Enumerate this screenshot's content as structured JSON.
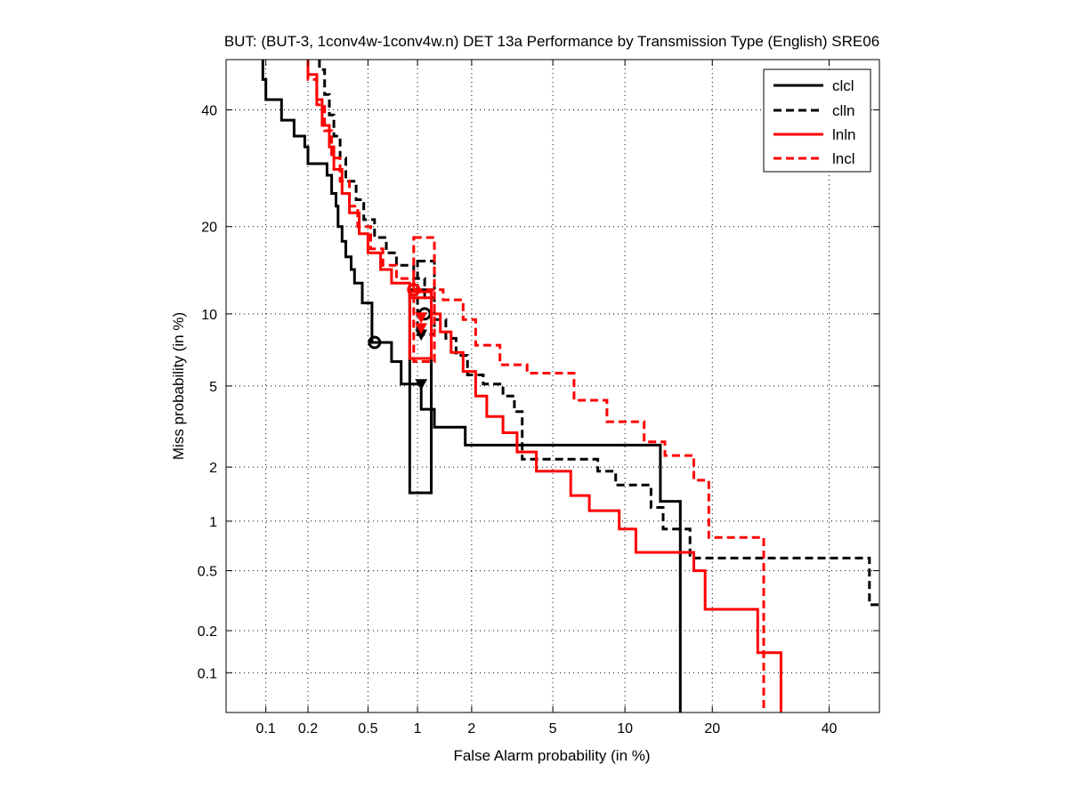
{
  "chart_data": {
    "type": "line",
    "title": "BUT: (BUT-3, 1conv4w-1conv4w.n) DET 13a Performance by Transmission Type (English) SRE06",
    "xlabel": "False Alarm probability (in %)",
    "ylabel": "Miss probability (in %)",
    "x_scale": "probit",
    "y_scale": "probit",
    "xlim": [
      0.05,
      50
    ],
    "ylim": [
      0.05,
      50
    ],
    "grid": true,
    "legend_position": "top-right",
    "x_ticks": [
      {
        "v": 0.1,
        "label": "0.1"
      },
      {
        "v": 0.2,
        "label": "0.2"
      },
      {
        "v": 0.5,
        "label": "0.5"
      },
      {
        "v": 1,
        "label": "1"
      },
      {
        "v": 2,
        "label": "2"
      },
      {
        "v": 5,
        "label": "5"
      },
      {
        "v": 10,
        "label": "10"
      },
      {
        "v": 20,
        "label": "20"
      },
      {
        "v": 40,
        "label": "40"
      }
    ],
    "y_ticks": [
      {
        "v": 0.1,
        "label": "0.1"
      },
      {
        "v": 0.2,
        "label": "0.2"
      },
      {
        "v": 0.5,
        "label": "0.5"
      },
      {
        "v": 1,
        "label": "1"
      },
      {
        "v": 2,
        "label": "2"
      },
      {
        "v": 5,
        "label": "5"
      },
      {
        "v": 10,
        "label": "10"
      },
      {
        "v": 20,
        "label": "20"
      },
      {
        "v": 40,
        "label": "40"
      }
    ],
    "series": [
      {
        "name": "clcl",
        "color": "#000000",
        "dash": "solid",
        "points": [
          [
            0.095,
            50
          ],
          [
            0.095,
            46
          ],
          [
            0.1,
            46
          ],
          [
            0.1,
            42
          ],
          [
            0.13,
            42
          ],
          [
            0.13,
            38
          ],
          [
            0.16,
            38
          ],
          [
            0.16,
            35
          ],
          [
            0.19,
            35
          ],
          [
            0.19,
            33
          ],
          [
            0.2,
            33
          ],
          [
            0.2,
            30
          ],
          [
            0.27,
            30
          ],
          [
            0.27,
            28
          ],
          [
            0.29,
            28
          ],
          [
            0.29,
            25
          ],
          [
            0.31,
            25
          ],
          [
            0.31,
            23
          ],
          [
            0.32,
            23
          ],
          [
            0.32,
            20
          ],
          [
            0.34,
            20
          ],
          [
            0.34,
            18
          ],
          [
            0.36,
            18
          ],
          [
            0.36,
            16
          ],
          [
            0.39,
            16
          ],
          [
            0.39,
            14.5
          ],
          [
            0.41,
            14.5
          ],
          [
            0.41,
            13
          ],
          [
            0.46,
            13
          ],
          [
            0.46,
            11
          ],
          [
            0.53,
            11
          ],
          [
            0.53,
            7.7
          ],
          [
            0.7,
            7.7
          ],
          [
            0.7,
            6.4
          ],
          [
            0.8,
            6.4
          ],
          [
            0.8,
            5.1
          ],
          [
            1.05,
            5.1
          ],
          [
            1.05,
            3.9
          ],
          [
            1.25,
            3.9
          ],
          [
            1.25,
            3.2
          ],
          [
            1.85,
            3.2
          ],
          [
            1.85,
            2.6
          ],
          [
            13.5,
            2.6
          ],
          [
            13.5,
            1.3
          ],
          [
            15.8,
            1.3
          ],
          [
            15.8,
            0.05
          ]
        ],
        "marker": {
          "shape": "circle",
          "x": 0.55,
          "y": 7.7
        },
        "marker2": {
          "shape": "circle",
          "x": 1.1,
          "y": 10
        },
        "ci_box": {
          "x": [
            0.9,
            1.2
          ],
          "y": [
            1.45,
            12.3
          ]
        },
        "actual": {
          "shape": "triangle",
          "x": 1.05,
          "y": 5.1
        }
      },
      {
        "name": "clln",
        "color": "#000000",
        "dash": "dashed",
        "points": [
          [
            0.24,
            50
          ],
          [
            0.24,
            48
          ],
          [
            0.26,
            48
          ],
          [
            0.26,
            43
          ],
          [
            0.28,
            43
          ],
          [
            0.28,
            39
          ],
          [
            0.3,
            39
          ],
          [
            0.3,
            35
          ],
          [
            0.33,
            35
          ],
          [
            0.33,
            31
          ],
          [
            0.36,
            31
          ],
          [
            0.36,
            27
          ],
          [
            0.42,
            27
          ],
          [
            0.42,
            24
          ],
          [
            0.47,
            24
          ],
          [
            0.47,
            21
          ],
          [
            0.55,
            21
          ],
          [
            0.55,
            18.5
          ],
          [
            0.65,
            18.5
          ],
          [
            0.65,
            16.5
          ],
          [
            0.75,
            16.5
          ],
          [
            0.75,
            15
          ],
          [
            0.95,
            15
          ],
          [
            0.95,
            13.5
          ],
          [
            1.1,
            13.5
          ],
          [
            1.1,
            11.5
          ],
          [
            1.25,
            11.5
          ],
          [
            1.25,
            9.5
          ],
          [
            1.45,
            9.5
          ],
          [
            1.45,
            8
          ],
          [
            1.65,
            8
          ],
          [
            1.65,
            6.8
          ],
          [
            1.9,
            6.8
          ],
          [
            1.9,
            5.6
          ],
          [
            2.3,
            5.6
          ],
          [
            2.3,
            5.1
          ],
          [
            2.9,
            5.1
          ],
          [
            2.9,
            4.5
          ],
          [
            3.3,
            4.5
          ],
          [
            3.3,
            3.8
          ],
          [
            3.6,
            3.8
          ],
          [
            3.6,
            2.2
          ],
          [
            7.8,
            2.2
          ],
          [
            7.8,
            1.9
          ],
          [
            9.2,
            1.9
          ],
          [
            9.2,
            1.6
          ],
          [
            12.5,
            1.6
          ],
          [
            12.5,
            1.2
          ],
          [
            13.8,
            1.2
          ],
          [
            13.8,
            0.9
          ],
          [
            17.0,
            0.9
          ],
          [
            17.0,
            0.6
          ],
          [
            48,
            0.6
          ],
          [
            48,
            0.3
          ],
          [
            50,
            0.3
          ]
        ],
        "ci_box": {
          "x": [
            1.0,
            1.25
          ],
          "y": [
            8.3,
            15.5
          ]
        },
        "actual": {
          "shape": "triangle",
          "x": 1.05,
          "y": 8.3
        }
      },
      {
        "name": "lnln",
        "color": "#ff0000",
        "dash": "solid",
        "points": [
          [
            0.2,
            50
          ],
          [
            0.2,
            47
          ],
          [
            0.23,
            47
          ],
          [
            0.23,
            42
          ],
          [
            0.25,
            42
          ],
          [
            0.25,
            37
          ],
          [
            0.28,
            37
          ],
          [
            0.28,
            33
          ],
          [
            0.3,
            33
          ],
          [
            0.3,
            29
          ],
          [
            0.34,
            29
          ],
          [
            0.34,
            25
          ],
          [
            0.38,
            25
          ],
          [
            0.38,
            22
          ],
          [
            0.44,
            22
          ],
          [
            0.44,
            19
          ],
          [
            0.5,
            19
          ],
          [
            0.5,
            16.5
          ],
          [
            0.6,
            16.5
          ],
          [
            0.6,
            14.5
          ],
          [
            0.7,
            14.5
          ],
          [
            0.7,
            13
          ],
          [
            0.9,
            13
          ],
          [
            0.9,
            11.5
          ],
          [
            1.2,
            11.5
          ],
          [
            1.2,
            10
          ],
          [
            1.35,
            10
          ],
          [
            1.35,
            8.5
          ],
          [
            1.55,
            8.5
          ],
          [
            1.55,
            7
          ],
          [
            1.8,
            7
          ],
          [
            1.8,
            5.8
          ],
          [
            2.1,
            5.8
          ],
          [
            2.1,
            4.5
          ],
          [
            2.4,
            4.5
          ],
          [
            2.4,
            3.6
          ],
          [
            2.9,
            3.6
          ],
          [
            2.9,
            3.0
          ],
          [
            3.4,
            3.0
          ],
          [
            3.4,
            2.4
          ],
          [
            4.2,
            2.4
          ],
          [
            4.2,
            1.9
          ],
          [
            6.0,
            1.9
          ],
          [
            6.0,
            1.4
          ],
          [
            7.2,
            1.4
          ],
          [
            7.2,
            1.15
          ],
          [
            9.5,
            1.15
          ],
          [
            9.5,
            0.9
          ],
          [
            11.0,
            0.9
          ],
          [
            11.0,
            0.65
          ],
          [
            17.5,
            0.65
          ],
          [
            17.5,
            0.5
          ],
          [
            19.0,
            0.5
          ],
          [
            19.0,
            0.28
          ],
          [
            27.0,
            0.28
          ],
          [
            27.0,
            0.14
          ],
          [
            31.0,
            0.14
          ],
          [
            31.0,
            0.05
          ]
        ],
        "marker": {
          "shape": "circle",
          "x": 0.95,
          "y": 12.3
        },
        "ci_box": {
          "x": [
            0.9,
            1.2
          ],
          "y": [
            6.6,
            12.1
          ]
        },
        "actual": {
          "shape": "triangle",
          "x": 1.05,
          "y": 8.8
        }
      },
      {
        "name": "lncl",
        "color": "#ff0000",
        "dash": "dashed",
        "points": [
          [
            0.2,
            50
          ],
          [
            0.2,
            46
          ],
          [
            0.23,
            46
          ],
          [
            0.23,
            41
          ],
          [
            0.26,
            41
          ],
          [
            0.26,
            36
          ],
          [
            0.29,
            36
          ],
          [
            0.29,
            31
          ],
          [
            0.33,
            31
          ],
          [
            0.33,
            27
          ],
          [
            0.38,
            27
          ],
          [
            0.38,
            23
          ],
          [
            0.43,
            23
          ],
          [
            0.43,
            20
          ],
          [
            0.52,
            20
          ],
          [
            0.52,
            17
          ],
          [
            0.62,
            17
          ],
          [
            0.62,
            15
          ],
          [
            0.75,
            15
          ],
          [
            0.75,
            13.5
          ],
          [
            0.95,
            13.5
          ],
          [
            0.95,
            12.3
          ],
          [
            1.4,
            12.3
          ],
          [
            1.4,
            11.3
          ],
          [
            1.8,
            11.3
          ],
          [
            1.8,
            9.5
          ],
          [
            2.1,
            9.5
          ],
          [
            2.1,
            7.5
          ],
          [
            2.8,
            7.5
          ],
          [
            2.8,
            6.2
          ],
          [
            3.8,
            6.2
          ],
          [
            3.8,
            5.7
          ],
          [
            6.2,
            5.7
          ],
          [
            6.2,
            4.3
          ],
          [
            8.5,
            4.3
          ],
          [
            8.5,
            3.4
          ],
          [
            11.8,
            3.4
          ],
          [
            11.8,
            2.7
          ],
          [
            14.0,
            2.7
          ],
          [
            14.0,
            2.3
          ],
          [
            17.5,
            2.3
          ],
          [
            17.5,
            1.7
          ],
          [
            19.5,
            1.7
          ],
          [
            19.5,
            0.8
          ],
          [
            28.0,
            0.8
          ],
          [
            28.0,
            0.05
          ]
        ],
        "ci_box": {
          "x": [
            0.95,
            1.25
          ],
          "y": [
            6.4,
            18.5
          ]
        },
        "actual": {
          "shape": "triangle",
          "x": 1.05,
          "y": 9.7
        }
      }
    ]
  }
}
